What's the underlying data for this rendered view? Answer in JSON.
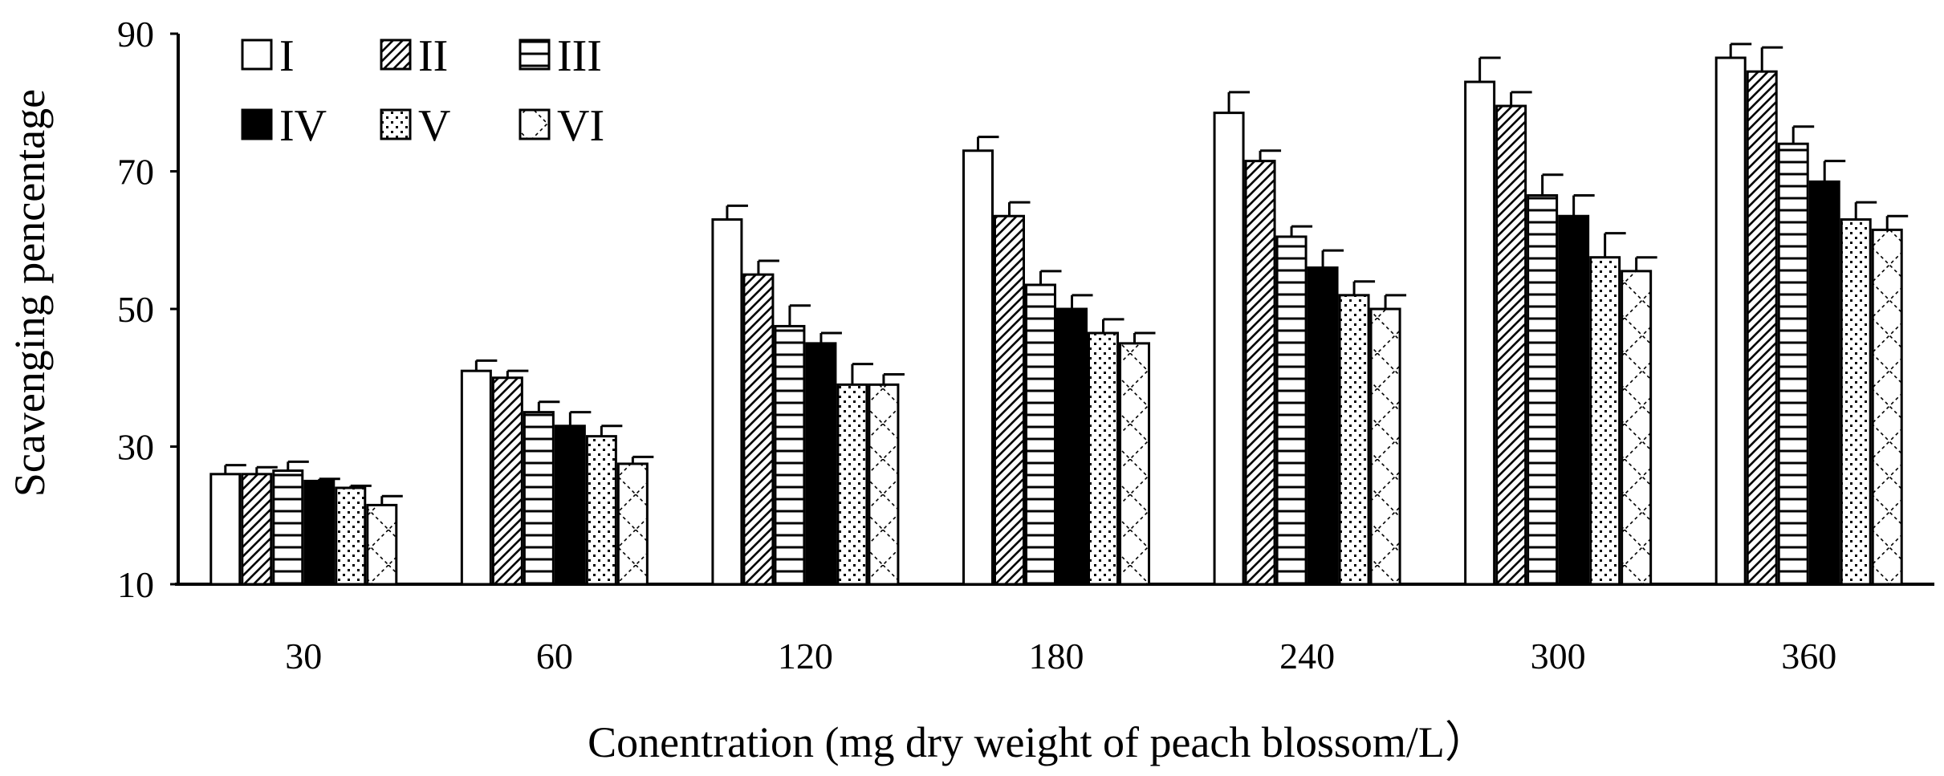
{
  "chart_data": {
    "type": "bar",
    "title": "",
    "xlabel": "Conentration (mg dry weight of peach blossom/L）",
    "ylabel": "Scavenging pencentage",
    "ylim": [
      10,
      90
    ],
    "yticks": [
      10,
      30,
      50,
      70,
      90
    ],
    "grid": false,
    "legend": "top-left",
    "categories": [
      "30",
      "60",
      "120",
      "180",
      "240",
      "300",
      "360"
    ],
    "series": [
      {
        "name": "I",
        "pattern": "open",
        "values": [
          26,
          41,
          63,
          73,
          78.5,
          83,
          86.5
        ],
        "errors": [
          1.3,
          1.5,
          2.0,
          2.0,
          3.0,
          3.5,
          2.0
        ]
      },
      {
        "name": "II",
        "pattern": "diagonal",
        "values": [
          26,
          40,
          55,
          63.5,
          71.5,
          79.5,
          84.5
        ],
        "errors": [
          1.0,
          1.0,
          2.0,
          2.0,
          1.5,
          2.0,
          3.5
        ]
      },
      {
        "name": "III",
        "pattern": "horizontal",
        "values": [
          26.5,
          35,
          47.5,
          53.5,
          60.5,
          66.5,
          74
        ],
        "errors": [
          1.3,
          1.5,
          3.0,
          2.0,
          1.5,
          3.0,
          2.5
        ]
      },
      {
        "name": "IV",
        "pattern": "solid",
        "values": [
          25,
          33,
          45,
          50,
          56,
          63.5,
          68.5
        ],
        "errors": [
          0.3,
          2.0,
          1.5,
          2.0,
          2.5,
          3.0,
          3.0
        ]
      },
      {
        "name": "V",
        "pattern": "dotted",
        "values": [
          24,
          31.5,
          39,
          46.5,
          52,
          57.5,
          63
        ],
        "errors": [
          0.3,
          1.5,
          3.0,
          2.0,
          2.0,
          3.5,
          2.5
        ]
      },
      {
        "name": "VI",
        "pattern": "crosshatch",
        "values": [
          21.5,
          27.5,
          39,
          45,
          50,
          55.5,
          61.5
        ],
        "errors": [
          1.3,
          1.0,
          1.5,
          1.5,
          2.0,
          2.0,
          2.0
        ]
      }
    ],
    "colors": {
      "bar_fill": "#ffffff",
      "stroke": "#000000",
      "solid": "#000000"
    }
  }
}
